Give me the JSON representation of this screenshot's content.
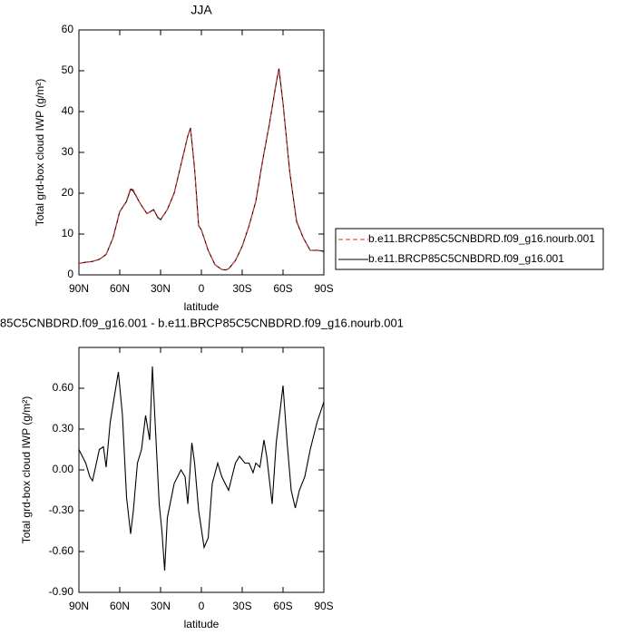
{
  "chart_data": [
    {
      "type": "line",
      "title": "JJA",
      "xlabel": "latitude",
      "ylabel": "Total grd-box cloud IWP (g/m²)",
      "x": [
        90,
        85,
        80,
        75,
        70,
        65,
        60,
        55,
        52,
        50,
        45,
        40,
        35,
        32,
        30,
        25,
        20,
        15,
        10,
        8,
        5,
        2,
        0,
        -5,
        -10,
        -15,
        -18,
        -20,
        -25,
        -30,
        -35,
        -40,
        -45,
        -50,
        -55,
        -57,
        -60,
        -65,
        -70,
        -75,
        -80,
        -85,
        -90
      ],
      "series": [
        {
          "name": "b.e11.BRCP85C5CNBDRD.f09_g16.nourb.001",
          "color": "#e0302a",
          "line_style": "dashed",
          "values": [
            2.8,
            3.1,
            3.3,
            3.8,
            5.0,
            9.0,
            15.4,
            18.2,
            21.3,
            20.8,
            17.5,
            15.0,
            15.8,
            14.2,
            13.6,
            16.0,
            20.1,
            27.0,
            34.0,
            35.8,
            26.0,
            12.2,
            11.0,
            6.0,
            2.5,
            1.3,
            1.2,
            1.5,
            3.5,
            7.0,
            12.0,
            18.0,
            28.0,
            37.0,
            47.2,
            50.2,
            42.0,
            25.0,
            13.2,
            9.0,
            6.0,
            6.1,
            5.5
          ]
        },
        {
          "name": "b.e11.BRCP85C5CNBDRD.f09_g16.001",
          "color": "#000000",
          "line_style": "solid",
          "values": [
            2.8,
            3.1,
            3.3,
            3.8,
            5.0,
            9.0,
            15.5,
            18.0,
            21.0,
            20.5,
            17.5,
            15.0,
            16.0,
            14.0,
            13.5,
            16.0,
            20.0,
            27.0,
            34.0,
            36.0,
            26.0,
            12.0,
            11.0,
            6.0,
            2.5,
            1.3,
            1.2,
            1.5,
            3.5,
            7.0,
            12.0,
            18.0,
            28.0,
            37.0,
            47.0,
            50.5,
            42.0,
            25.0,
            13.0,
            9.0,
            6.0,
            6.0,
            5.8
          ]
        }
      ],
      "xlim": [
        90,
        -90
      ],
      "xticks": [
        {
          "value": 90,
          "label": "90N"
        },
        {
          "value": 60,
          "label": "60N"
        },
        {
          "value": 30,
          "label": "30N"
        },
        0,
        {
          "value": -30,
          "label": "30S"
        },
        {
          "value": -60,
          "label": "60S"
        },
        {
          "value": -90,
          "label": "90S"
        }
      ],
      "ylim": [
        0,
        60
      ],
      "yticks": [
        0,
        10,
        20,
        30,
        40,
        50,
        60
      ]
    },
    {
      "type": "line",
      "title": "85C5CNBDRD.f09_g16.001 - b.e11.BRCP85C5CNBDRD.f09_g16.nourb.001",
      "xlabel": "latitude",
      "ylabel": "Total grd-box cloud IWP (g/m²)",
      "x": [
        90,
        85,
        82,
        80,
        75,
        72,
        70,
        67,
        63,
        61,
        58,
        55,
        52,
        50,
        47,
        44,
        41,
        38,
        36,
        34,
        31,
        29,
        27,
        25,
        20,
        15,
        12,
        10,
        7,
        5,
        2,
        -2,
        -5,
        -8,
        -12,
        -15,
        -20,
        -25,
        -28,
        -32,
        -35,
        -38,
        -40,
        -43,
        -46,
        -48,
        -52,
        -55,
        -58,
        -60,
        -63,
        -66,
        -69,
        -72,
        -76,
        -80,
        -85,
        -90
      ],
      "series": [
        {
          "color": "#000000",
          "line_style": "solid",
          "values": [
            0.15,
            0.05,
            -0.05,
            -0.08,
            0.15,
            0.17,
            0.02,
            0.35,
            0.6,
            0.72,
            0.4,
            -0.2,
            -0.47,
            -0.3,
            0.05,
            0.15,
            0.4,
            0.22,
            0.76,
            0.35,
            -0.25,
            -0.45,
            -0.74,
            -0.35,
            -0.1,
            0.0,
            -0.05,
            -0.25,
            0.2,
            0.05,
            -0.3,
            -0.57,
            -0.5,
            -0.1,
            0.05,
            -0.05,
            -0.15,
            0.05,
            0.1,
            0.05,
            0.05,
            -0.02,
            0.05,
            0.02,
            0.22,
            0.1,
            -0.25,
            0.2,
            0.45,
            0.62,
            0.2,
            -0.15,
            -0.28,
            -0.15,
            -0.05,
            0.15,
            0.35,
            0.5
          ]
        }
      ],
      "xlim": [
        90,
        -90
      ],
      "xticks": [
        {
          "value": 90,
          "label": "90N"
        },
        {
          "value": 60,
          "label": "60N"
        },
        {
          "value": 30,
          "label": "30N"
        },
        0,
        {
          "value": -30,
          "label": "30S"
        },
        {
          "value": -60,
          "label": "60S"
        },
        {
          "value": -90,
          "label": "90S"
        }
      ],
      "ylim": [
        -0.9,
        0.9
      ],
      "yticks": [
        {
          "value": -0.9,
          "label": "-0.90"
        },
        {
          "value": -0.6,
          "label": "-0.60"
        },
        {
          "value": -0.3,
          "label": "-0.30"
        },
        {
          "value": 0,
          "label": "0.00"
        },
        {
          "value": 0.3,
          "label": "0.30"
        },
        {
          "value": 0.6,
          "label": "0.60"
        }
      ]
    }
  ]
}
